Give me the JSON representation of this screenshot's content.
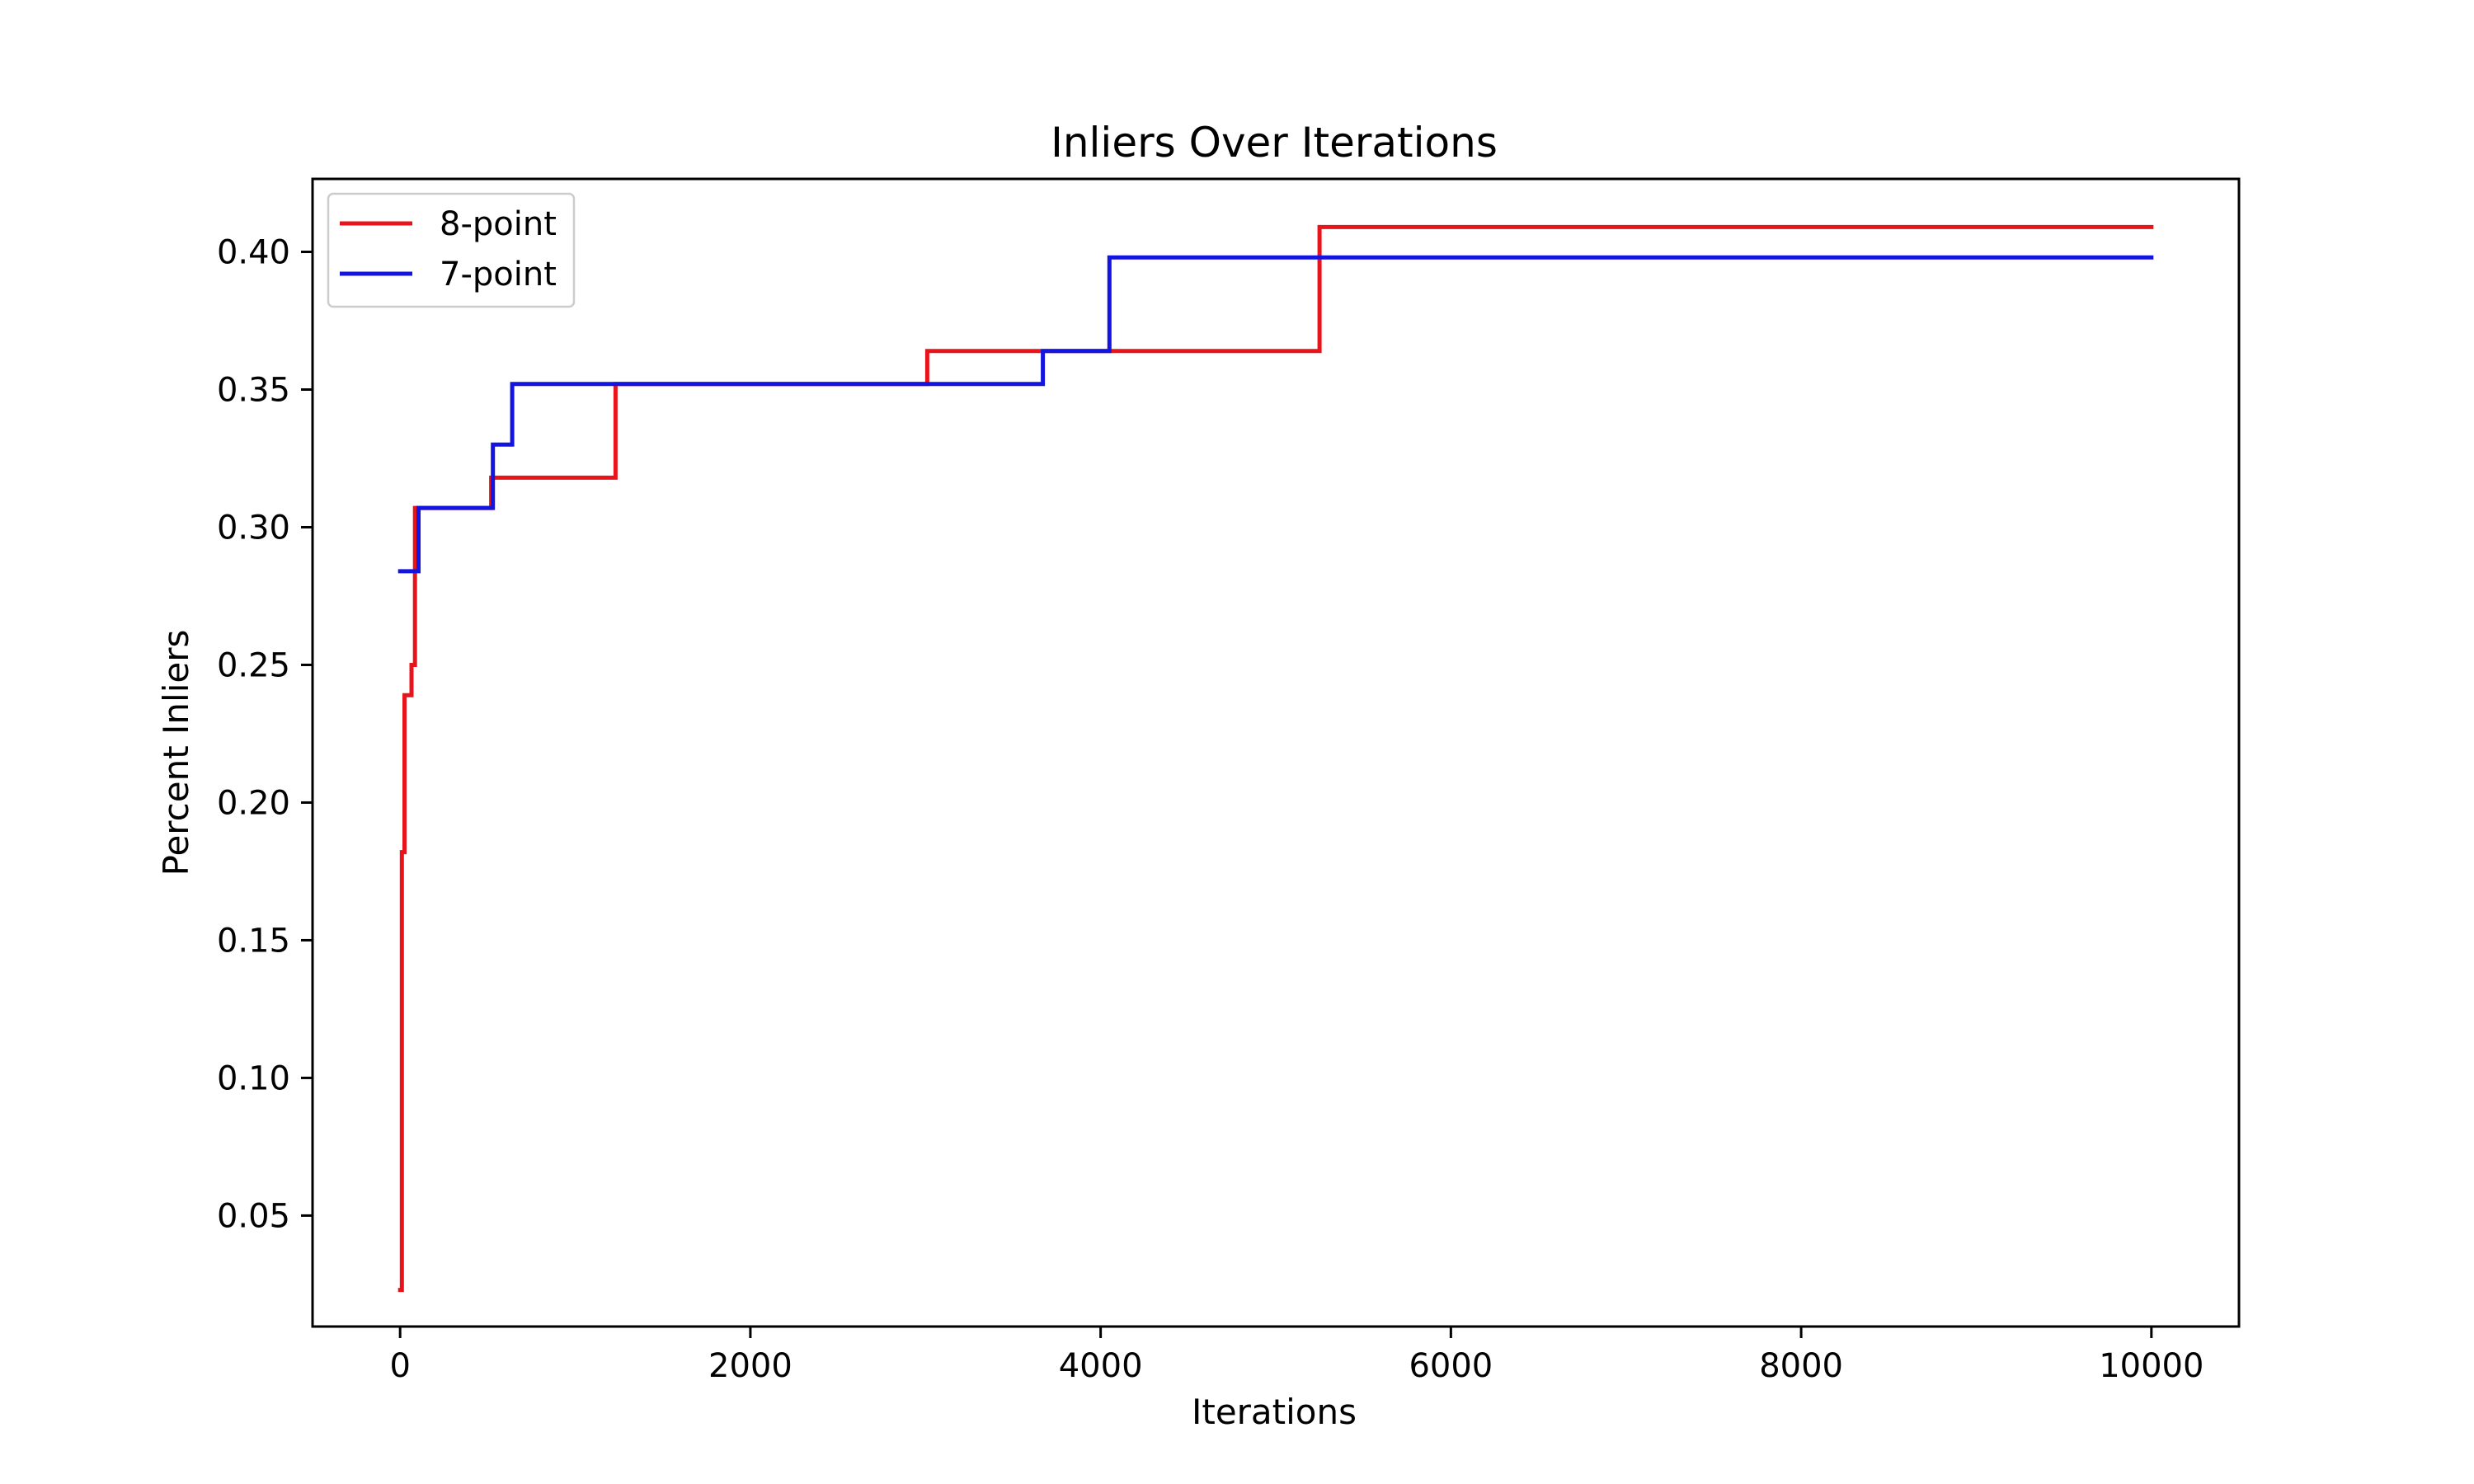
{
  "chart_data": {
    "type": "line",
    "step": "post",
    "title": "Inliers Over Iterations",
    "xlabel": "Iterations",
    "ylabel": "Percent Inliers",
    "xlim": [
      -500,
      10500
    ],
    "ylim": [
      0.0097,
      0.4265
    ],
    "xticks": [
      0,
      2000,
      4000,
      6000,
      8000,
      10000
    ],
    "xtick_labels": [
      "0",
      "2000",
      "4000",
      "6000",
      "8000",
      "10000"
    ],
    "yticks": [
      0.05,
      0.1,
      0.15,
      0.2,
      0.25,
      0.3,
      0.35,
      0.4
    ],
    "ytick_labels": [
      "0.05",
      "0.10",
      "0.15",
      "0.20",
      "0.25",
      "0.30",
      "0.35",
      "0.40"
    ],
    "grid": false,
    "legend_position": "top-left",
    "series": [
      {
        "name": "8-point",
        "color": "#e8141c",
        "x": [
          0,
          10,
          25,
          65,
          85,
          520,
          1230,
          3010,
          5250,
          10000
        ],
        "y": [
          0.023,
          0.182,
          0.239,
          0.25,
          0.307,
          0.318,
          0.352,
          0.364,
          0.409,
          0.409
        ]
      },
      {
        "name": "7-point",
        "color": "#1414e0",
        "x": [
          0,
          105,
          530,
          640,
          3670,
          4050,
          10000
        ],
        "y": [
          0.284,
          0.307,
          0.33,
          0.352,
          0.364,
          0.398,
          0.398
        ]
      }
    ]
  }
}
